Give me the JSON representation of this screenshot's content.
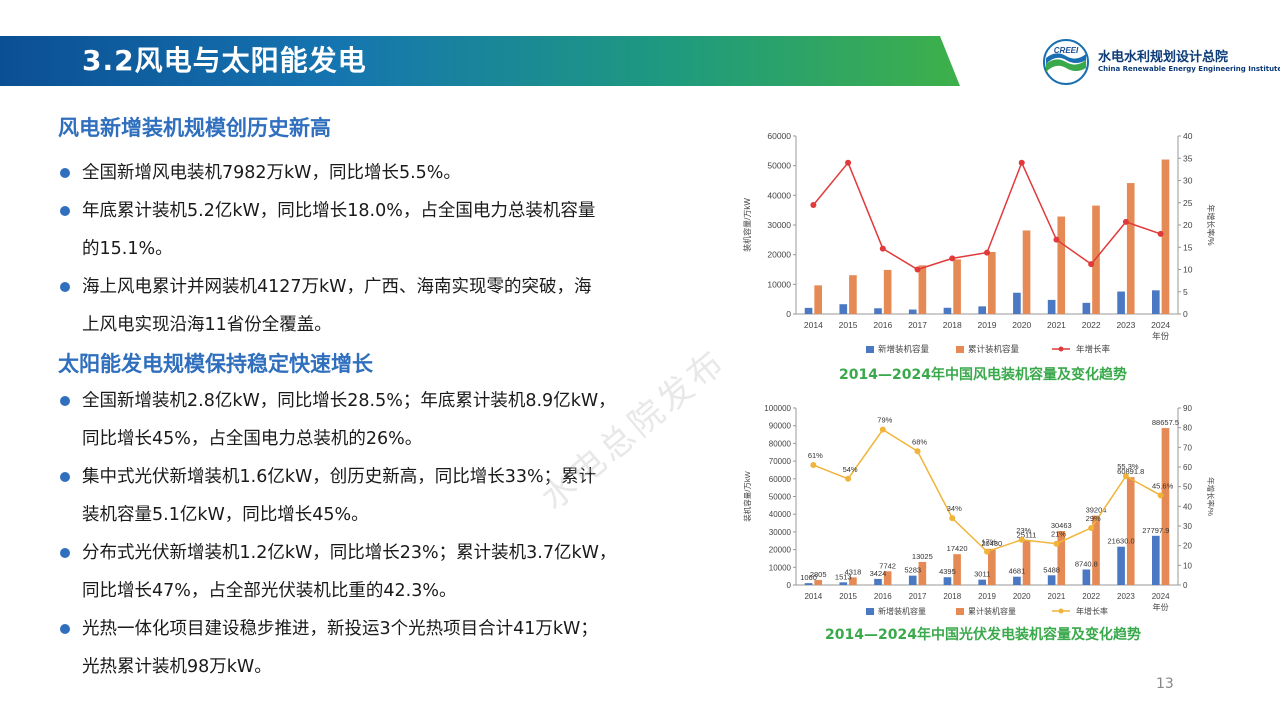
{
  "header": {
    "title": "3.2风电与太阳能发电"
  },
  "logo": {
    "text_mark": "CREEI",
    "name_cn": "水电水利规划设计总院",
    "name_en": "China Renewable Energy Engineering Institute"
  },
  "sections": [
    {
      "title": "风电新增装机规模创历史新高",
      "bullets": [
        {
          "lines": [
            "全国新增风电装机7982万kW，同比增长5.5%。"
          ]
        },
        {
          "lines": [
            "年底累计装机5.2亿kW，同比增长18.0%，占全国电力总装机容量",
            "的15.1%。"
          ]
        },
        {
          "lines": [
            "海上风电累计并网装机4127万kW，广西、海南实现零的突破，海",
            "上风电实现沿海11省份全覆盖。"
          ]
        }
      ]
    },
    {
      "title": "太阳能发电规模保持稳定快速增长",
      "bullets": [
        {
          "lines": [
            "全国新增装机2.8亿kW，同比增长28.5%；年底累计装机8.9亿kW，",
            "同比增长45%，占全国电力总装机的26%。"
          ]
        },
        {
          "lines": [
            "集中式光伏新增装机1.6亿kW，创历史新高，同比增长33%；累计",
            "装机容量5.1亿kW，同比增长45%。"
          ]
        },
        {
          "lines": [
            "分布式光伏新增装机1.2亿kW，同比增长23%；累计装机3.7亿kW，",
            "同比增长47%，占全部光伏装机比重的42.3%。"
          ]
        },
        {
          "lines": [
            "光热一体化项目建设稳步推进，新投运3个光热项目合计41万kW；",
            "光热累计装机98万kW。"
          ]
        }
      ]
    }
  ],
  "watermark": "水电总院发布",
  "page_number": "13",
  "colors": {
    "bar_new": "#4a78c2",
    "bar_cum": "#e58a55",
    "wind_line": "#e03a3a",
    "pv_line": "#f0b43a",
    "caption": "#3aa94b",
    "heading": "#2f6fbd"
  },
  "chart_data": [
    {
      "type": "bar",
      "title": "",
      "caption": "2014—2024年中国风电装机容量及变化趋势",
      "categories": [
        "2014",
        "2015",
        "2016",
        "2017",
        "2018",
        "2019",
        "2020",
        "2021",
        "2022",
        "2023",
        "2024"
      ],
      "xlabel": "年份",
      "ylabel": "装机容量/万kW",
      "y2label": "年增长率/%",
      "ylim": [
        0,
        60000
      ],
      "y2lim": [
        0,
        40
      ],
      "yticks": [
        0,
        10000,
        20000,
        30000,
        40000,
        50000,
        60000
      ],
      "y2ticks": [
        0,
        5,
        10,
        15,
        20,
        25,
        30,
        35,
        40
      ],
      "grid": false,
      "legend": "bottom",
      "series": [
        {
          "name": "新增装机容量",
          "kind": "bar",
          "axis": "left",
          "values": [
            2072,
            3297,
            1930,
            1500,
            2100,
            2574,
            7167,
            4757,
            3763,
            7566,
            7982
          ]
        },
        {
          "name": "累计装机容量",
          "kind": "bar",
          "axis": "left",
          "values": [
            9657,
            13075,
            14864,
            16400,
            18400,
            20900,
            28153,
            32848,
            36544,
            44134,
            52068
          ]
        },
        {
          "name": "年增长率",
          "kind": "line",
          "axis": "right",
          "values": [
            24.5,
            34,
            14.7,
            10,
            12.5,
            13.8,
            34,
            16.7,
            11.2,
            20.7,
            18
          ]
        }
      ]
    },
    {
      "type": "bar",
      "title": "",
      "caption": "2014—2024年中国光伏发电装机容量及变化趋势",
      "categories": [
        "2014",
        "2015",
        "2016",
        "2017",
        "2018",
        "2019",
        "2020",
        "2021",
        "2022",
        "2023",
        "2024"
      ],
      "xlabel": "年份",
      "ylabel": "装机容量/万kW",
      "y2label": "年增长率/%",
      "ylim": [
        0,
        100000
      ],
      "y2lim": [
        0,
        90
      ],
      "yticks": [
        0,
        10000,
        20000,
        30000,
        40000,
        50000,
        60000,
        70000,
        80000,
        90000,
        100000
      ],
      "y2ticks": [
        0,
        10,
        20,
        30,
        40,
        50,
        60,
        70,
        80,
        90
      ],
      "grid": false,
      "legend": "bottom",
      "series": [
        {
          "name": "新增装机容量",
          "kind": "bar",
          "axis": "left",
          "values": [
            1060,
            1513,
            3424,
            5283,
            4395,
            3011,
            4681,
            5488,
            8740.8,
            21630,
            27797.9
          ],
          "labels": [
            "1060",
            "1513",
            "3424",
            "5283",
            "4395",
            "3011",
            "4681",
            "5488",
            "8740.8",
            "21630.0",
            "27797.9"
          ]
        },
        {
          "name": "累计装机容量",
          "kind": "bar",
          "axis": "left",
          "values": [
            2805,
            4318,
            7742,
            13025,
            17420,
            20430,
            25111,
            30463,
            39204,
            60891.8,
            88657.5
          ],
          "labels": [
            "2805",
            "4318",
            "7742",
            "13025",
            "17420",
            "20430",
            "25111",
            "30463",
            "39204",
            "60891.8",
            "88657.5"
          ]
        },
        {
          "name": "年增长率",
          "kind": "line",
          "axis": "right",
          "values": [
            61,
            54,
            79,
            68,
            34,
            17,
            23,
            21,
            29,
            55.3,
            45.6
          ],
          "labels": [
            "61%",
            "54%",
            "79%",
            "68%",
            "34%",
            "17%",
            "23%",
            "21%",
            "29%",
            "55.3%",
            "45.6%"
          ]
        }
      ]
    }
  ]
}
